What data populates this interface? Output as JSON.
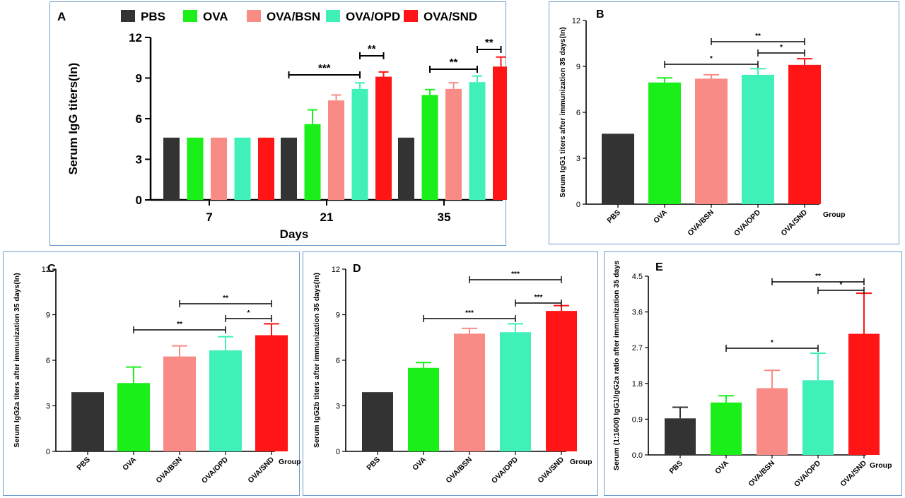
{
  "colors": {
    "PBS": "#333333",
    "OVA": "#1aef1a",
    "OVA/BSN": "#f88b86",
    "OVA/OPD": "#3ff0b8",
    "OVA/SND": "#ff1515"
  },
  "chart_data": [
    {
      "id": "A",
      "type": "bar",
      "panel_letter": "A",
      "title": "",
      "xlabel": "Days",
      "ylabel": "Serum IgG titers(In)",
      "ylim": [
        0,
        12
      ],
      "yticks": [
        "0",
        "3",
        "6",
        "9",
        "12"
      ],
      "categories": [
        "7",
        "21",
        "35"
      ],
      "legend": [
        "PBS",
        "OVA",
        "OVA/BSN",
        "OVA/OPD",
        "OVA/SND"
      ],
      "series": [
        {
          "name": "PBS",
          "values": [
            4.6,
            4.6,
            4.6
          ],
          "errors": [
            0,
            0,
            0
          ]
        },
        {
          "name": "OVA",
          "values": [
            4.6,
            5.6,
            7.75
          ],
          "errors": [
            0,
            1.05,
            0.4
          ]
        },
        {
          "name": "OVA/BSN",
          "values": [
            4.6,
            7.35,
            8.2
          ],
          "errors": [
            0,
            0.4,
            0.45
          ]
        },
        {
          "name": "OVA/OPD",
          "values": [
            4.6,
            8.2,
            8.7
          ],
          "errors": [
            0,
            0.45,
            0.45
          ]
        },
        {
          "name": "OVA/SND",
          "values": [
            4.6,
            9.1,
            9.85
          ],
          "errors": [
            0,
            0.35,
            0.7
          ]
        }
      ],
      "significance": [
        {
          "category": 1,
          "from": 0,
          "to": 3,
          "label": "***"
        },
        {
          "category": 1,
          "from": 3,
          "to": 4,
          "label": "**"
        },
        {
          "category": 2,
          "from": 1,
          "to": 3,
          "label": "**"
        },
        {
          "category": 2,
          "from": 3,
          "to": 4,
          "label": "**"
        }
      ]
    },
    {
      "id": "B",
      "type": "bar",
      "panel_letter": "B",
      "xlabel": "Group",
      "ylabel": "Serum IgG1 titers after immunization 35 days(In)",
      "ylim": [
        0,
        12
      ],
      "yticks": [
        "0",
        "3",
        "6",
        "9",
        "12"
      ],
      "categories": [
        "PBS",
        "OVA",
        "OVA/BSN",
        "OVA/OPD",
        "OVA/SND"
      ],
      "values": [
        4.6,
        7.95,
        8.2,
        8.45,
        9.1
      ],
      "errors": [
        0,
        0.3,
        0.25,
        0.4,
        0.4
      ],
      "significance": [
        {
          "from": 1,
          "to": 3,
          "label": "*"
        },
        {
          "from": 2,
          "to": 4,
          "label": "**"
        },
        {
          "from": 3,
          "to": 4,
          "label": "*"
        }
      ]
    },
    {
      "id": "C",
      "type": "bar",
      "panel_letter": "C",
      "xlabel": "Group",
      "ylabel": "Serum IgG2a titers after immunization 35 days(In)",
      "ylim": [
        0,
        12
      ],
      "yticks": [
        "0",
        "3",
        "6",
        "9",
        "12"
      ],
      "categories": [
        "PBS",
        "OVA",
        "OVA/BSN",
        "OVA/OPD",
        "OVA/SND"
      ],
      "values": [
        3.9,
        4.5,
        6.25,
        6.65,
        7.65
      ],
      "errors": [
        0,
        1.05,
        0.7,
        0.9,
        0.75
      ],
      "significance": [
        {
          "from": 1,
          "to": 3,
          "label": "**"
        },
        {
          "from": 2,
          "to": 4,
          "label": "**"
        },
        {
          "from": 3,
          "to": 4,
          "label": "*"
        }
      ]
    },
    {
      "id": "D",
      "type": "bar",
      "panel_letter": "D",
      "xlabel": "Group",
      "ylabel": "Serum IgG2b titers after immunization 35 days(In)",
      "ylim": [
        0,
        12
      ],
      "yticks": [
        "0",
        "3",
        "6",
        "9",
        "12"
      ],
      "categories": [
        "PBS",
        "OVA",
        "OVA/BSN",
        "OVA/OPD",
        "OVA/SND"
      ],
      "values": [
        3.9,
        5.5,
        7.75,
        7.85,
        9.25
      ],
      "errors": [
        0,
        0.35,
        0.35,
        0.55,
        0.35
      ],
      "significance": [
        {
          "from": 1,
          "to": 3,
          "label": "***"
        },
        {
          "from": 2,
          "to": 4,
          "label": "***"
        },
        {
          "from": 3,
          "to": 4,
          "label": "***"
        }
      ]
    },
    {
      "id": "E",
      "type": "bar",
      "panel_letter": "E",
      "xlabel": "Group",
      "ylabel": "Serum (1:1600) IgG1/IgG2a ratio after immunization 35 days",
      "ylim": [
        0,
        4.5
      ],
      "yticks": [
        "0.0",
        "0.9",
        "1.8",
        "2.7",
        "3.6",
        "4.5"
      ],
      "categories": [
        "PBS",
        "OVA",
        "OVA/BSN",
        "OVA/OPD",
        "OVA/SND"
      ],
      "values": [
        0.92,
        1.32,
        1.68,
        1.88,
        3.05
      ],
      "errors": [
        0.28,
        0.17,
        0.45,
        0.68,
        1.02
      ],
      "significance": [
        {
          "from": 1,
          "to": 3,
          "label": "*"
        },
        {
          "from": 2,
          "to": 4,
          "label": "**"
        },
        {
          "from": 3,
          "to": 4,
          "label": "*"
        }
      ]
    }
  ]
}
